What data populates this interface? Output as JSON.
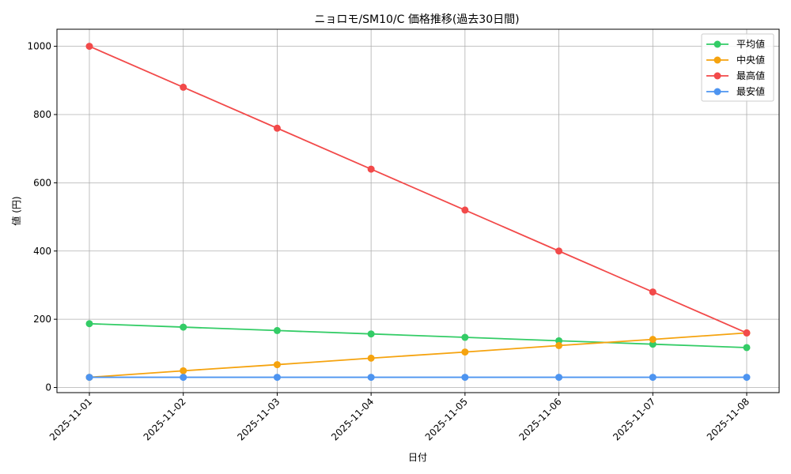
{
  "chart_data": {
    "type": "line",
    "title": "ニョロモ/SM10/C 価格推移(過去30日間)",
    "xlabel": "日付",
    "ylabel": "値 (円)",
    "categories": [
      "2025-11-01",
      "2025-11-02",
      "2025-11-03",
      "2025-11-04",
      "2025-11-05",
      "2025-11-06",
      "2025-11-07",
      "2025-11-08"
    ],
    "ylim": [
      -15,
      1050
    ],
    "yticks": [
      0,
      200,
      400,
      600,
      800,
      1000
    ],
    "grid": true,
    "legend_position": "top-right",
    "series": [
      {
        "name": "平均値",
        "color": "#33cc66",
        "values": [
          187,
          177,
          167,
          157,
          147,
          137,
          127,
          117
        ]
      },
      {
        "name": "中央値",
        "color": "#f5a30f",
        "values": [
          30,
          49,
          67,
          86,
          104,
          123,
          141,
          160
        ]
      },
      {
        "name": "最高値",
        "color": "#f24a4a",
        "values": [
          1000,
          880,
          760,
          640,
          520,
          400,
          280,
          160
        ]
      },
      {
        "name": "最安値",
        "color": "#4d94f0",
        "values": [
          30,
          30,
          30,
          30,
          30,
          30,
          30,
          30
        ]
      }
    ]
  }
}
